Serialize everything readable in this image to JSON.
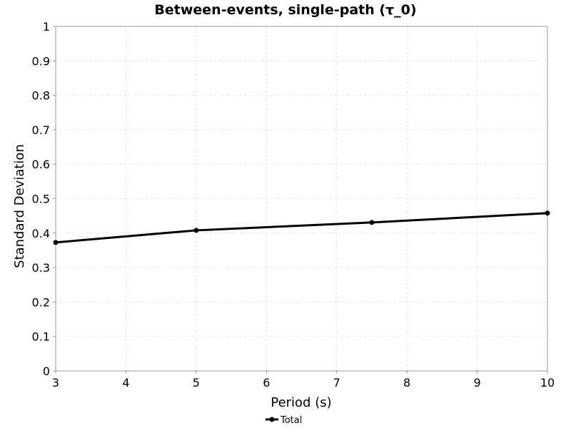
{
  "chart_data": {
    "type": "line",
    "title": "Between-events, single-path (τ_0)",
    "xlabel": "Period (s)",
    "ylabel": "Standard Deviation",
    "xlim": [
      3,
      10
    ],
    "ylim": [
      0,
      1
    ],
    "x_ticks": [
      "3",
      "4",
      "5",
      "6",
      "7",
      "8",
      "9",
      "10"
    ],
    "y_ticks": [
      "0",
      "0.1",
      "0.2",
      "0.3",
      "0.4",
      "0.5",
      "0.6",
      "0.7",
      "0.8",
      "0.9",
      "1"
    ],
    "grid": true,
    "legend_position": "bottom",
    "series": [
      {
        "name": "Total",
        "color": "#000000",
        "x": [
          3,
          5,
          7.5,
          10
        ],
        "y": [
          0.373,
          0.408,
          0.431,
          0.458
        ]
      }
    ]
  }
}
